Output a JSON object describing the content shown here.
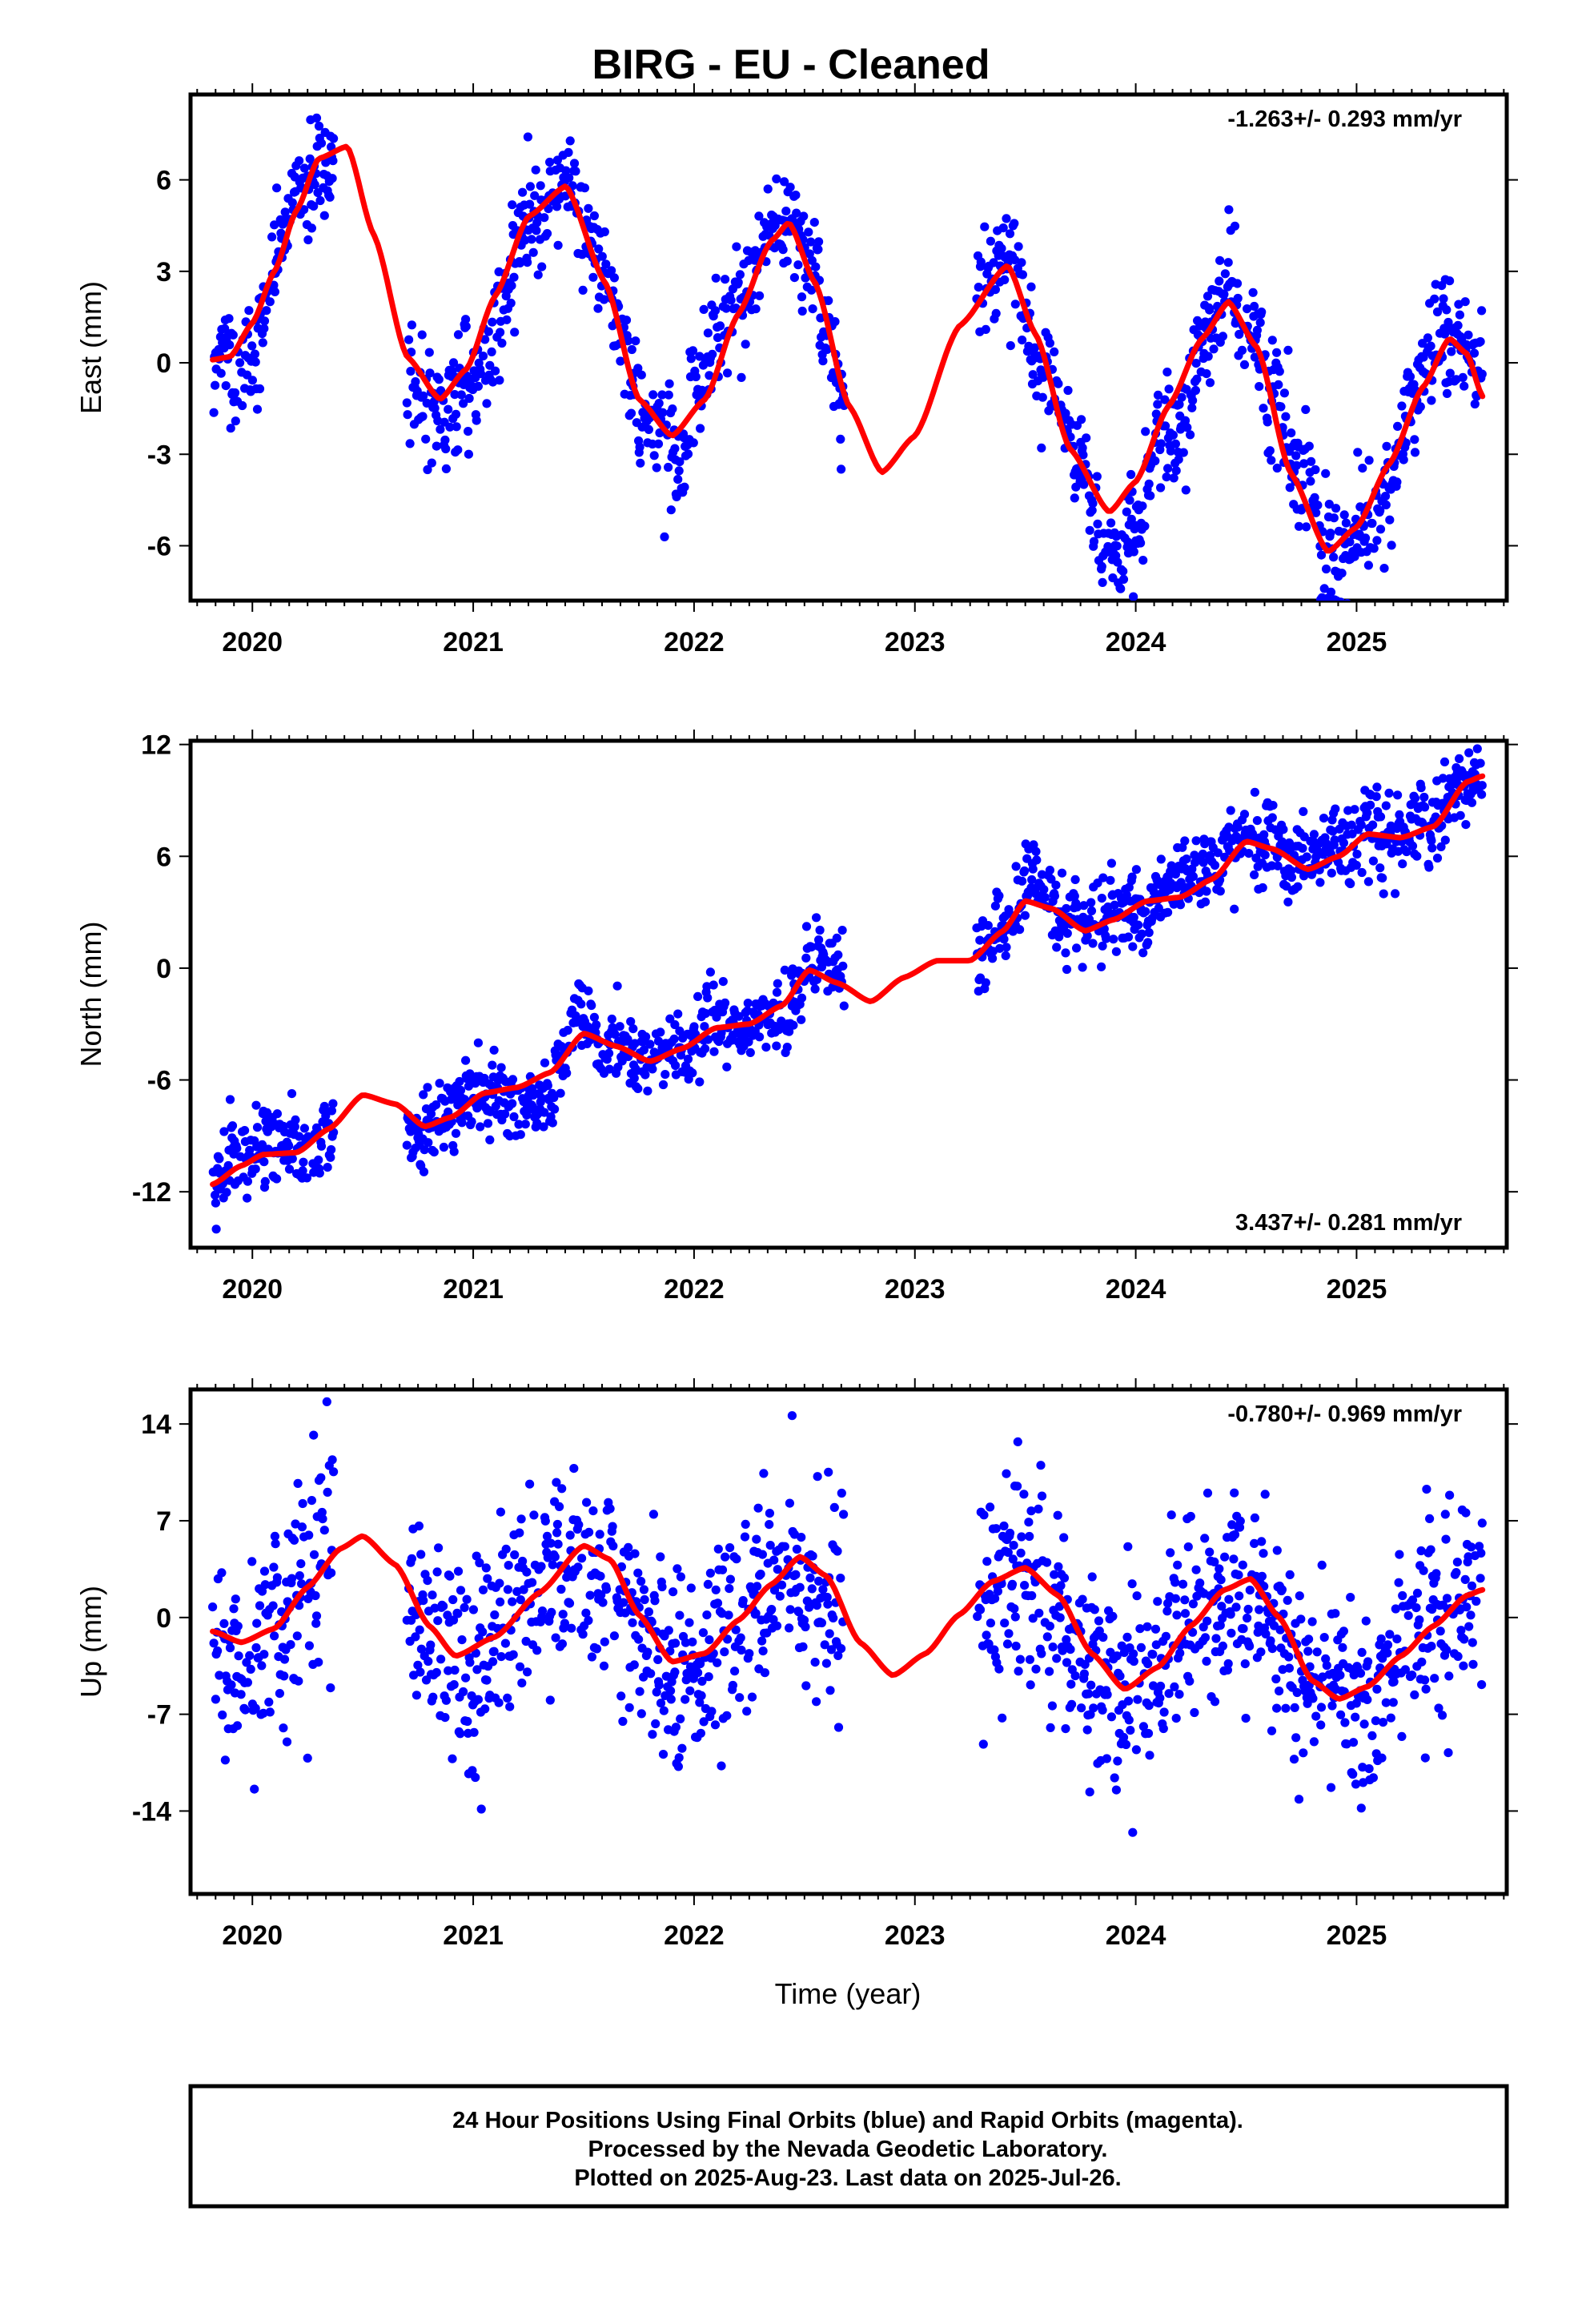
{
  "title": "BIRG  - EU - Cleaned",
  "xlabel": "Time (year)",
  "footer": {
    "line1": "24 Hour Positions Using Final Orbits (blue) and Rapid Orbits (magenta).",
    "line2": "Processed by the Nevada Geodetic Laboratory.",
    "line3": "Plotted on 2025-Aug-23. Last data on 2025-Jul-26."
  },
  "colors": {
    "points": "#0000ff",
    "fit": "#ff0000",
    "frame": "#000000"
  },
  "chart_data": [
    {
      "type": "scatter",
      "component": "east",
      "ylabel": "East (mm)",
      "rate_text": "-1.263+/- 0.293 mm/yr",
      "rate_position": "top-right",
      "xlim": [
        2019.72,
        2025.68
      ],
      "ylim": [
        -7.8,
        8.8
      ],
      "xticks": [
        2020,
        2021,
        2022,
        2023,
        2024,
        2025
      ],
      "xtick_labels": [
        "2020",
        "2021",
        "2022",
        "2023",
        "2024",
        "2025"
      ],
      "yticks": [
        -6,
        -3,
        0,
        3,
        6
      ],
      "ytick_labels": [
        "-6",
        "-3",
        "0",
        "3",
        "6"
      ],
      "data_segments": [
        [
          2019.82,
          2020.37
        ],
        [
          2020.7,
          2022.68
        ],
        [
          2023.28,
          2025.57
        ]
      ],
      "fit_curve": {
        "x": [
          2019.82,
          2019.9,
          2020.0,
          2020.1,
          2020.2,
          2020.3,
          2020.43,
          2020.55,
          2020.7,
          2020.85,
          2020.97,
          2021.1,
          2021.25,
          2021.42,
          2021.6,
          2021.75,
          2021.9,
          2022.05,
          2022.2,
          2022.35,
          2022.43,
          2022.55,
          2022.7,
          2022.85,
          2023.0,
          2023.2,
          2023.42,
          2023.55,
          2023.7,
          2023.88,
          2024.0,
          2024.15,
          2024.3,
          2024.42,
          2024.55,
          2024.7,
          2024.87,
          2025.0,
          2025.15,
          2025.3,
          2025.42,
          2025.5,
          2025.57
        ],
        "y": [
          0.1,
          0.2,
          1.3,
          3.0,
          5.0,
          6.7,
          7.1,
          4.2,
          0.2,
          -1.2,
          -0.2,
          2.2,
          4.8,
          5.8,
          2.6,
          -1.2,
          -2.4,
          -1.2,
          1.6,
          4.0,
          4.6,
          2.6,
          -1.4,
          -3.6,
          -2.4,
          1.2,
          3.2,
          0.9,
          -2.8,
          -4.9,
          -3.9,
          -1.4,
          0.8,
          2.0,
          0.5,
          -3.6,
          -6.2,
          -5.4,
          -3.3,
          -0.8,
          0.8,
          0.3,
          -1.1
        ]
      }
    },
    {
      "type": "scatter",
      "component": "north",
      "ylabel": "North (mm)",
      "rate_text": "3.437+/- 0.281 mm/yr",
      "rate_position": "bottom-right",
      "xlim": [
        2019.72,
        2025.68
      ],
      "ylim": [
        -15.0,
        12.2
      ],
      "xticks": [
        2020,
        2021,
        2022,
        2023,
        2024,
        2025
      ],
      "xtick_labels": [
        "2020",
        "2021",
        "2022",
        "2023",
        "2024",
        "2025"
      ],
      "yticks": [
        -12,
        -6,
        0,
        6,
        12
      ],
      "ytick_labels": [
        "-12",
        "-6",
        "0",
        "6",
        "12"
      ],
      "data_segments": [
        [
          2019.82,
          2020.37
        ],
        [
          2020.7,
          2022.68
        ],
        [
          2023.28,
          2025.57
        ]
      ],
      "fit_curve": {
        "x": [
          2019.82,
          2019.95,
          2020.05,
          2020.2,
          2020.35,
          2020.5,
          2020.65,
          2020.78,
          2020.9,
          2021.05,
          2021.2,
          2021.35,
          2021.5,
          2021.65,
          2021.8,
          2021.95,
          2022.1,
          2022.25,
          2022.4,
          2022.52,
          2022.65,
          2022.8,
          2022.95,
          2023.1,
          2023.25,
          2023.4,
          2023.5,
          2023.62,
          2023.77,
          2023.9,
          2024.05,
          2024.2,
          2024.35,
          2024.5,
          2024.62,
          2024.78,
          2024.92,
          2025.05,
          2025.2,
          2025.35,
          2025.5,
          2025.57
        ],
        "y": [
          -11.6,
          -10.6,
          -10.0,
          -9.9,
          -8.6,
          -6.8,
          -7.3,
          -8.5,
          -8.0,
          -6.7,
          -6.4,
          -5.6,
          -3.5,
          -4.2,
          -5.0,
          -4.3,
          -3.2,
          -3.0,
          -2.0,
          -0.1,
          -0.8,
          -1.8,
          -0.5,
          0.4,
          0.4,
          2.0,
          3.6,
          3.2,
          2.0,
          2.6,
          3.6,
          3.8,
          4.8,
          6.8,
          6.4,
          5.3,
          6.0,
          7.2,
          7.0,
          7.6,
          10.0,
          10.3
        ]
      }
    },
    {
      "type": "scatter",
      "component": "up",
      "ylabel": "Up (mm)",
      "rate_text": "-0.780+/- 0.969 mm/yr",
      "rate_position": "top-right",
      "xlim": [
        2019.72,
        2025.68
      ],
      "ylim": [
        -20.0,
        16.5
      ],
      "xticks": [
        2020,
        2021,
        2022,
        2023,
        2024,
        2025
      ],
      "xtick_labels": [
        "2020",
        "2021",
        "2022",
        "2023",
        "2024",
        "2025"
      ],
      "yticks": [
        -14,
        -7,
        0,
        7,
        14
      ],
      "ytick_labels": [
        "-14",
        "-7",
        "0",
        "7",
        "14"
      ],
      "data_segments": [
        [
          2019.82,
          2020.37
        ],
        [
          2020.7,
          2022.68
        ],
        [
          2023.28,
          2025.57
        ]
      ],
      "fit_curve": {
        "x": [
          2019.82,
          2019.95,
          2020.1,
          2020.25,
          2020.4,
          2020.5,
          2020.65,
          2020.8,
          2020.92,
          2021.1,
          2021.3,
          2021.5,
          2021.62,
          2021.75,
          2021.9,
          2022.05,
          2022.2,
          2022.35,
          2022.48,
          2022.6,
          2022.75,
          2022.9,
          2023.05,
          2023.2,
          2023.35,
          2023.5,
          2023.65,
          2023.8,
          2023.95,
          2024.1,
          2024.25,
          2024.4,
          2024.52,
          2024.65,
          2024.8,
          2024.92,
          2025.05,
          2025.2,
          2025.35,
          2025.5,
          2025.57
        ],
        "y": [
          -1.0,
          -1.8,
          -0.8,
          2.2,
          5.0,
          5.9,
          3.8,
          -0.6,
          -2.8,
          -1.4,
          1.8,
          5.2,
          4.2,
          0.2,
          -3.2,
          -2.6,
          -0.2,
          2.4,
          4.4,
          3.0,
          -1.8,
          -4.2,
          -2.6,
          0.2,
          2.6,
          3.6,
          1.6,
          -2.6,
          -5.2,
          -3.6,
          -0.6,
          2.0,
          2.8,
          0.0,
          -4.6,
          -5.9,
          -5.0,
          -2.8,
          -0.6,
          1.6,
          2.0
        ]
      }
    }
  ]
}
